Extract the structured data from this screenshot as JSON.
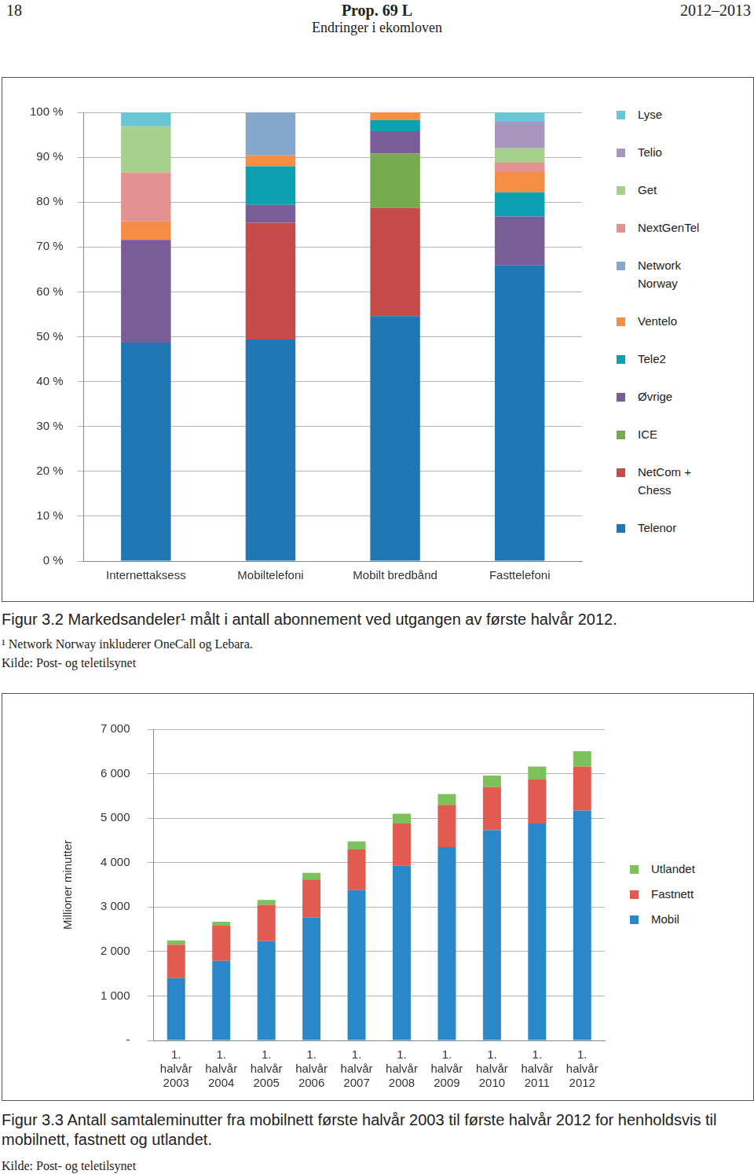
{
  "page": {
    "page_number": "18",
    "header_title": "Prop. 69 L",
    "header_subtitle": "Endringer i ekomloven",
    "header_year": "2012–2013"
  },
  "chart_data": [
    {
      "type": "bar",
      "stacked": true,
      "grid": true,
      "legend": "right",
      "title": "Figur 3.2 Markedsandeler¹ målt i antall abonnement ved utgangen av første halvår 2012.",
      "notes": [
        "¹ Network Norway inkluderer OneCall og Lebara.",
        "Kilde: Post- og teletilsynet"
      ],
      "categories": [
        "Internettaksess",
        "Mobiltelefoni",
        "Mobilt bredbånd",
        "Fasttelefoni"
      ],
      "ylim": [
        0,
        100
      ],
      "yticks": [
        {
          "value": 0,
          "label": "0 %"
        },
        {
          "value": 10,
          "label": "10 %"
        },
        {
          "value": 20,
          "label": "20 %"
        },
        {
          "value": 30,
          "label": "30 %"
        },
        {
          "value": 40,
          "label": "40 %"
        },
        {
          "value": 50,
          "label": "50 %"
        },
        {
          "value": 60,
          "label": "60 %"
        },
        {
          "value": 70,
          "label": "70 %"
        },
        {
          "value": 80,
          "label": "80 %"
        },
        {
          "value": 90,
          "label": "90 %"
        },
        {
          "value": 100,
          "label": "100 %"
        }
      ],
      "series": [
        {
          "name": "Telenor",
          "color": "#2077b4",
          "values": [
            48.7,
            49.4,
            54.6,
            66.0
          ]
        },
        {
          "name": "NetCom + Chess",
          "color": "#c44b4a",
          "values": [
            null,
            26.0,
            24.1,
            null
          ]
        },
        {
          "name": "ICE",
          "color": "#77a94f",
          "values": [
            null,
            null,
            12.1,
            null
          ]
        },
        {
          "name": "Øvrige",
          "color": "#7a5c99",
          "values": [
            22.9,
            4.0,
            5.0,
            10.8
          ]
        },
        {
          "name": "Tele2",
          "color": "#0da0b0",
          "values": [
            null,
            8.6,
            2.5,
            5.4
          ]
        },
        {
          "name": "Ventelo",
          "color": "#f68d44",
          "values": [
            4.1,
            2.4,
            1.7,
            4.5
          ]
        },
        {
          "name": "Network Norway",
          "color": "#86a8cf",
          "values": [
            null,
            9.6,
            null,
            null
          ]
        },
        {
          "name": "NextGenTel",
          "color": "#e39191",
          "values": [
            10.9,
            null,
            null,
            2.1
          ]
        },
        {
          "name": "Get",
          "color": "#a8d08d",
          "values": [
            10.3,
            null,
            null,
            3.2
          ]
        },
        {
          "name": "Telio",
          "color": "#a797bf",
          "values": [
            null,
            null,
            null,
            5.9
          ]
        },
        {
          "name": "Lyse",
          "color": "#6bc5d8",
          "values": [
            3.1,
            null,
            null,
            2.1
          ]
        }
      ]
    },
    {
      "type": "bar",
      "stacked": true,
      "grid": true,
      "legend": "right",
      "title": "Figur 3.3 Antall samtaleminutter fra mobilnett første halvår 2003 til første halvår 2012 for henholdsvis til mobilnett, fastnett og utlandet.",
      "notes": [
        "Kilde: Post- og teletilsynet"
      ],
      "ylabel": "Millioner minutter",
      "categories": [
        "1. halvår 2003",
        "1. halvår 2004",
        "1. halvår 2005",
        "1. halvår 2006",
        "1. halvår 2007",
        "1. halvår 2008",
        "1. halvår 2009",
        "1. halvår 2010",
        "1. halvår 2011",
        "1. halvår 2012"
      ],
      "ylim": [
        0,
        7000
      ],
      "yticks": [
        {
          "value": 0,
          "label": "-"
        },
        {
          "value": 1000,
          "label": "1 000"
        },
        {
          "value": 2000,
          "label": "2 000"
        },
        {
          "value": 3000,
          "label": "3 000"
        },
        {
          "value": 4000,
          "label": "4 000"
        },
        {
          "value": 5000,
          "label": "5 000"
        },
        {
          "value": 6000,
          "label": "6 000"
        },
        {
          "value": 7000,
          "label": "7 000"
        }
      ],
      "series": [
        {
          "name": "Mobil",
          "color": "#2a88c8",
          "values": [
            1400,
            1790,
            2230,
            2760,
            3380,
            3930,
            4350,
            4730,
            4880,
            5170
          ]
        },
        {
          "name": "Fastnett",
          "color": "#e15b50",
          "values": [
            750,
            790,
            820,
            860,
            915,
            950,
            950,
            970,
            990,
            990
          ]
        },
        {
          "name": "Utlandet",
          "color": "#7cc15a",
          "values": [
            100,
            90,
            110,
            150,
            180,
            220,
            240,
            255,
            290,
            345
          ]
        }
      ]
    }
  ]
}
